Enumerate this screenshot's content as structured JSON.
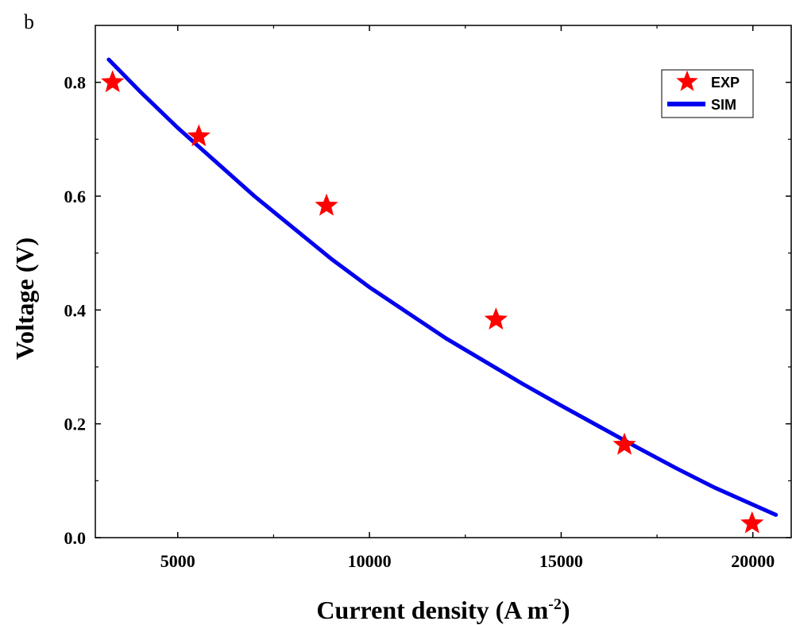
{
  "panel_label": "b",
  "chart_data": {
    "type": "line",
    "xlabel": "Current density (A m",
    "xlabel_superscript": "-2",
    "xlabel_suffix": ")",
    "ylabel": "Voltage (V)",
    "xlim": [
      2850,
      21000
    ],
    "ylim": [
      0.0,
      0.9
    ],
    "x_ticks": [
      5000,
      10000,
      15000,
      20000
    ],
    "x_tick_labels": [
      "5000",
      "10000",
      "15000",
      "20000"
    ],
    "y_ticks": [
      0.0,
      0.2,
      0.4,
      0.6,
      0.8
    ],
    "y_tick_labels": [
      "0.0",
      "0.2",
      "0.4",
      "0.6",
      "0.8"
    ],
    "legend_position": "top-right",
    "series": [
      {
        "name": "EXP",
        "kind": "scatter",
        "marker": "star",
        "color": "#ff0000",
        "x": [
          3300,
          5550,
          8880,
          13300,
          16650,
          19980
        ],
        "y": [
          0.8,
          0.705,
          0.583,
          0.383,
          0.163,
          0.025
        ]
      },
      {
        "name": "SIM",
        "kind": "line",
        "color": "#0000ee",
        "x": [
          3200,
          4000,
          5000,
          6000,
          7000,
          8000,
          9000,
          10000,
          11000,
          12000,
          13000,
          14000,
          15000,
          16000,
          17000,
          18000,
          19000,
          20000,
          20600
        ],
        "y": [
          0.84,
          0.785,
          0.72,
          0.66,
          0.6,
          0.545,
          0.49,
          0.44,
          0.395,
          0.35,
          0.31,
          0.27,
          0.232,
          0.195,
          0.158,
          0.122,
          0.088,
          0.058,
          0.04
        ]
      }
    ]
  }
}
